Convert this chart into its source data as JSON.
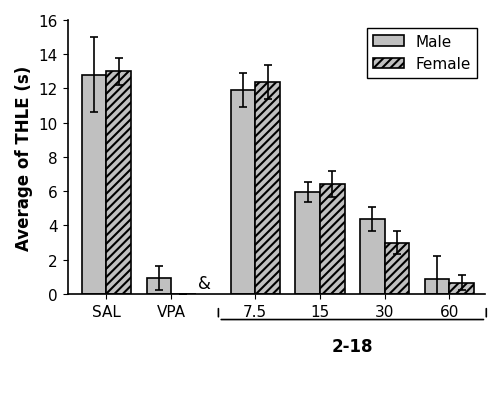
{
  "groups": [
    "SAL",
    "VPA",
    "7.5",
    "15",
    "30",
    "60"
  ],
  "male_values": [
    12.8,
    0.9,
    11.9,
    5.95,
    4.4,
    0.85
  ],
  "female_values": [
    13.0,
    0.0,
    12.4,
    6.4,
    3.0,
    0.65
  ],
  "male_errors": [
    2.2,
    0.7,
    1.0,
    0.6,
    0.7,
    1.35
  ],
  "female_errors": [
    0.8,
    0.0,
    1.0,
    0.75,
    0.65,
    0.45
  ],
  "ylabel": "Average of THLE (s)",
  "ylim": [
    0,
    16
  ],
  "yticks": [
    0,
    2,
    4,
    6,
    8,
    10,
    12,
    14,
    16
  ],
  "bar_width": 0.38,
  "male_color": "#c0c0c0",
  "female_color": "#c0c0c0",
  "hatch_female": "////",
  "annotation_text": "&",
  "xlabel_2_18": "2-18",
  "legend_labels": [
    "Male",
    "Female"
  ],
  "background_color": "#ffffff",
  "axis_fontsize": 12,
  "tick_fontsize": 11,
  "base_positions": [
    0,
    1,
    2.3,
    3.3,
    4.3,
    5.3
  ],
  "xlim": [
    -0.6,
    5.85
  ]
}
